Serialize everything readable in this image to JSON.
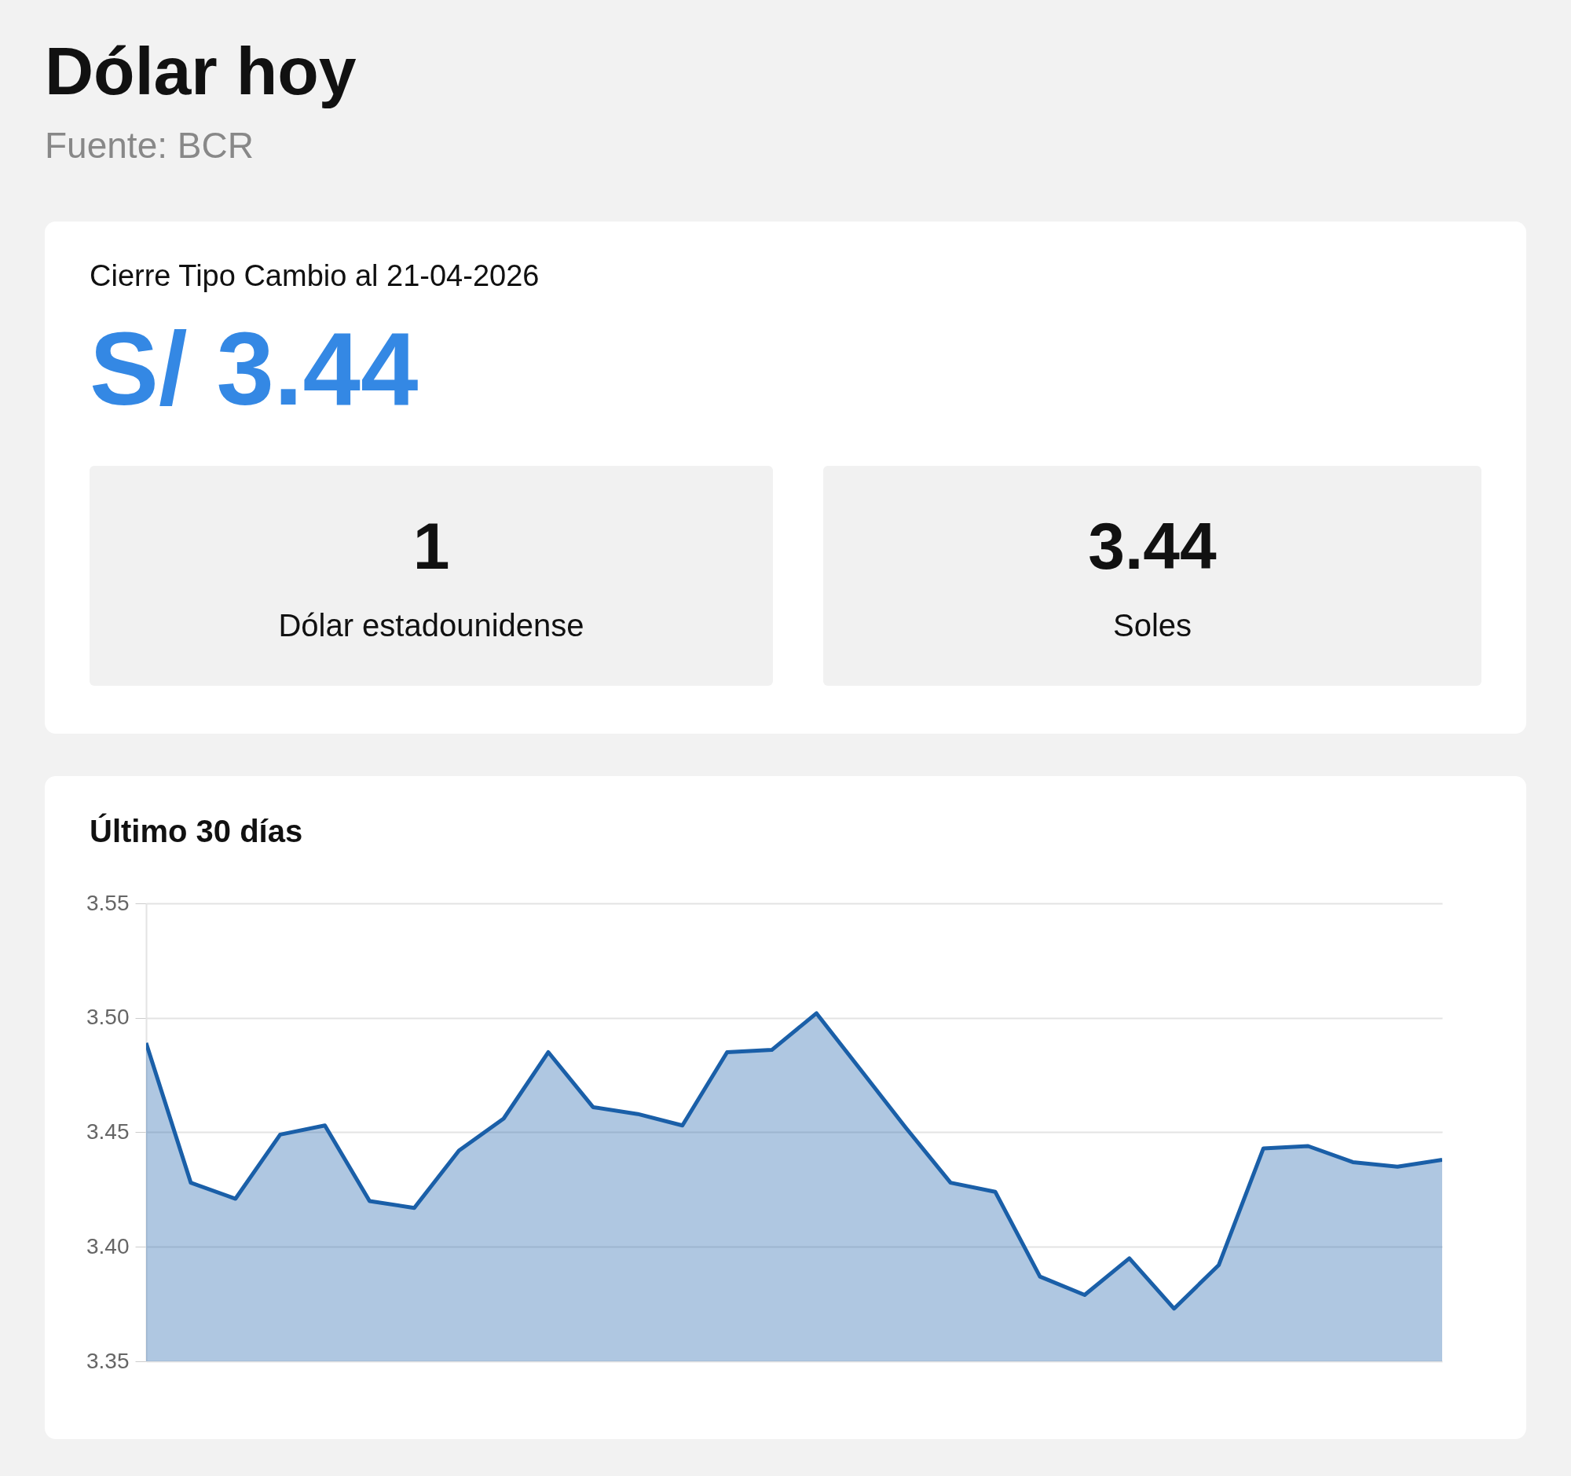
{
  "chart_data": [
    {
      "type": "other",
      "title": "Dólar hoy",
      "subtitle": "Fuente: BCR",
      "annotations": [
        "Cierre Tipo Cambio al 21-04-2026",
        "S/ 3.44",
        "1",
        "Dólar estadounidense",
        "3.44",
        "Soles"
      ]
    },
    {
      "type": "area",
      "title": "Último 30 días",
      "categories": [
        null,
        null,
        null,
        null,
        null,
        null,
        null,
        null,
        null,
        null,
        null,
        null,
        null,
        null,
        null,
        null,
        null,
        null,
        null,
        null,
        null,
        null,
        null,
        null,
        null,
        null,
        null,
        null,
        null,
        null
      ],
      "values": [
        3.489,
        3.428,
        3.421,
        3.449,
        3.453,
        3.42,
        3.417,
        3.442,
        3.456,
        3.485,
        3.461,
        3.458,
        3.453,
        3.485,
        3.486,
        3.502,
        3.477,
        3.452,
        3.428,
        3.424,
        3.387,
        3.379,
        3.395,
        3.373,
        3.392,
        3.443,
        3.444,
        3.437,
        3.435,
        3.438
      ],
      "color": "#1a5fa8",
      "ylim": [
        3.35,
        3.55
      ],
      "yticks": [
        3.35,
        {
          "value": 3.4,
          "label": "3.40"
        },
        3.45,
        {
          "value": 3.5,
          "label": "3.50"
        },
        3.55
      ],
      "grid": "y"
    }
  ]
}
